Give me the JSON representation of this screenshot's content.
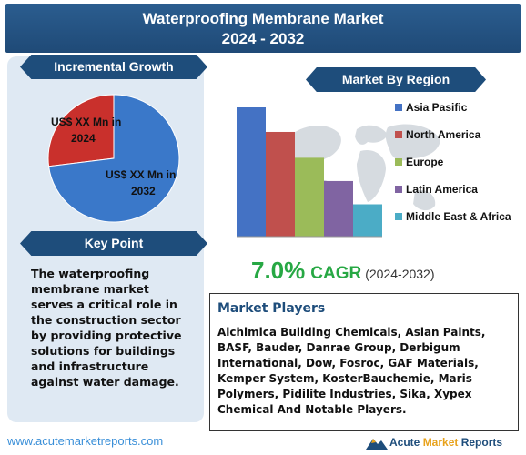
{
  "title": {
    "line1": "Waterproofing Membrane Market",
    "line2": "2024 - 2032"
  },
  "incremental_growth": {
    "heading": "Incremental Growth",
    "label_2024": "US$ XX Mn in 2024",
    "label_2032": "US$ XX Mn in 2032",
    "colors": {
      "2024": "#c9302c",
      "2032": "#3a78c9"
    }
  },
  "key_point": {
    "heading": "Key Point",
    "text": "The waterproofing membrane market serves a critical role in the construction sector by providing protective solutions for buildings and infrastructure against water damage."
  },
  "market_by_region": {
    "heading": "Market By Region"
  },
  "chart_data": [
    {
      "type": "pie",
      "title": "Incremental Growth",
      "slices": [
        {
          "label": "US$ XX Mn in 2024",
          "value": 27,
          "color": "#c9302c"
        },
        {
          "label": "US$ XX Mn in 2032",
          "value": 73,
          "color": "#3a78c9"
        }
      ]
    },
    {
      "type": "bar",
      "title": "Market By Region",
      "categories": [
        "Asia Pasific",
        "North America",
        "Europe",
        "Latin America",
        "Middle East & Africa"
      ],
      "values": [
        100,
        81,
        61,
        43,
        25
      ],
      "colors": [
        "#4472c4",
        "#c0504d",
        "#9bbb59",
        "#8064a2",
        "#4bacc6"
      ]
    }
  ],
  "cagr": {
    "value": "7.0%",
    "label": "CAGR",
    "period": "(2024-2032)"
  },
  "market_players": {
    "heading": "Market Players",
    "text": "Alchimica Building Chemicals, Asian Paints, BASF, Bauder, Danrae Group, Derbigum International, Dow, Fosroc, GAF Materials, Kemper System, KosterBauchemie, Maris Polymers, Pidilite Industries, Sika, Xypex Chemical And Notable Players."
  },
  "footer": {
    "url": "www.acutemarketreports.com",
    "brand_acute": "Acute",
    "brand_market": "Market",
    "brand_reports": "Reports"
  }
}
